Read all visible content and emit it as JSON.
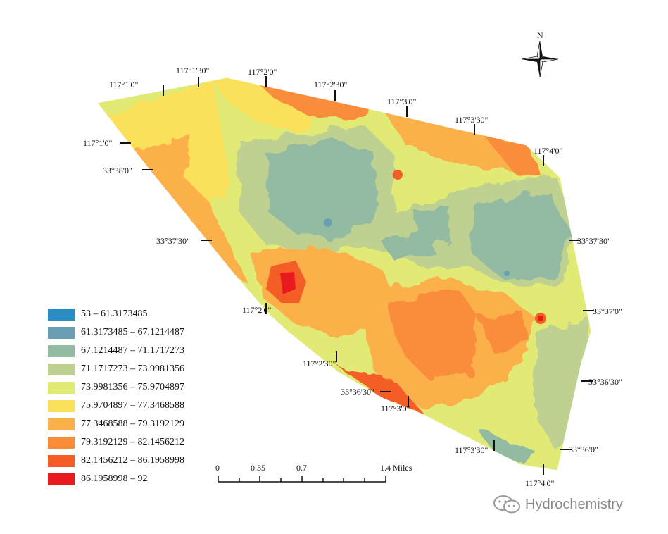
{
  "north_arrow": {
    "label": "N"
  },
  "top_labels": [
    "117°1'0\"",
    "117°1'30\"",
    "117°2'0\"",
    "117°2'30\"",
    "117°3'0\"",
    "117°3'30\"",
    "117°4'0\""
  ],
  "left_labels": [
    "117°1'0\"",
    "33°38'0\"",
    "33°37'30\"",
    "117°2'0\""
  ],
  "bottom_labels": [
    "117°2'30\"",
    "33°36'30\"",
    "117°3'0\"",
    "117°3'30\"",
    "117°4'0\""
  ],
  "right_labels": [
    "33°37'30\"",
    "33°37'0\"",
    "33°36'30\"",
    "33°36'0\""
  ],
  "legend": [
    {
      "label": "53 – 61.3173485",
      "color": "#2b8cc4"
    },
    {
      "label": "61.3173485 – 67.1214487",
      "color": "#6a9fb3"
    },
    {
      "label": "67.1214487 – 71.1717273",
      "color": "#93bba2"
    },
    {
      "label": "71.1717273 – 73.9981356",
      "color": "#bfd190"
    },
    {
      "label": "73.9981356 – 75.9704897",
      "color": "#e2ea76"
    },
    {
      "label": "75.9704897 – 77.3468588",
      "color": "#fbe15a"
    },
    {
      "label": "77.3468588 – 79.3192129",
      "color": "#fbb04a"
    },
    {
      "label": "79.3192129 – 82.1456212",
      "color": "#f98d3a"
    },
    {
      "label": "82.1456212 – 86.1958998",
      "color": "#f45d26"
    },
    {
      "label": "86.1958998 – 92",
      "color": "#e8191f"
    }
  ],
  "scale_bar": {
    "ticks": [
      "0",
      "0.35",
      "0.7",
      "1.4 Miles"
    ]
  },
  "watermark": {
    "text": "Hydrochemistry"
  }
}
